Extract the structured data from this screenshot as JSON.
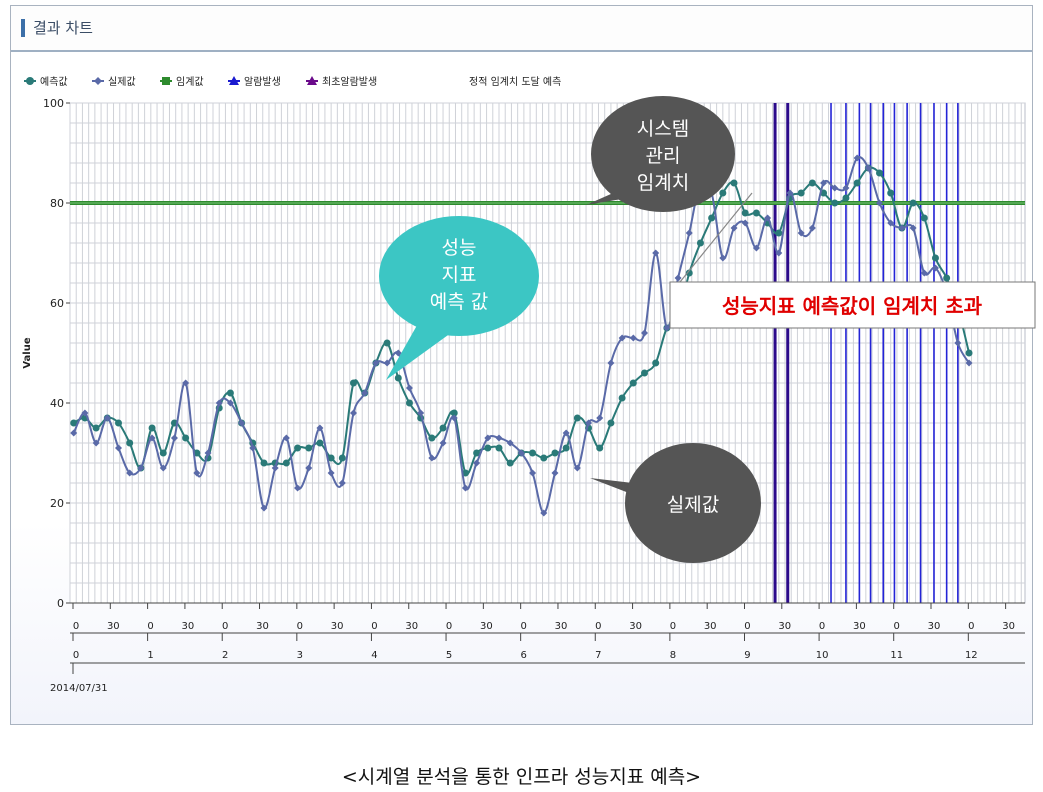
{
  "panel": {
    "title": "결과 차트"
  },
  "caption": "<시계열 분석을 통한 인프라 성능지표 예측>",
  "legend": {
    "items": [
      {
        "label": "예측값",
        "color": "#2a7a78",
        "marker": "circle"
      },
      {
        "label": "실제값",
        "color": "#5a6aa8",
        "marker": "diamond"
      },
      {
        "label": "임계값",
        "color": "#2e8b2e",
        "marker": "square"
      },
      {
        "label": "알람발생",
        "color": "#1a1ad0",
        "marker": "triangle"
      },
      {
        "label": "최초알람발생",
        "color": "#6a0a8a",
        "marker": "triangle"
      }
    ],
    "title": "정적 임계치 도달 예측"
  },
  "callouts": {
    "system_threshold": "시스템\n관리\n임계치",
    "perf_forecast": "성능\n지표\n예측 값",
    "actual": "실제값",
    "exceed_note": "성능지표 예측값이 임계치 초과"
  },
  "chart_data": {
    "type": "line",
    "ylabel": "Value",
    "ylim": [
      0,
      100
    ],
    "yticks": [
      0,
      20,
      40,
      60,
      80,
      100
    ],
    "x_minor_labels": [
      "0",
      "30",
      "0",
      "30",
      "0",
      "30",
      "0",
      "30",
      "0",
      "30",
      "0",
      "30",
      "0",
      "30",
      "0",
      "30",
      "0",
      "30",
      "0",
      "30",
      "0",
      "30",
      "0",
      "30",
      "0",
      "30"
    ],
    "x_hour_labels": [
      "0",
      "1",
      "2",
      "3",
      "4",
      "5",
      "6",
      "7",
      "8",
      "9",
      "10",
      "11",
      "12"
    ],
    "date_label": "2014/07/31",
    "x_unit": "hours",
    "x_range": [
      0,
      12.8
    ],
    "threshold": 80,
    "series": [
      {
        "name": "예측값",
        "color": "#2a7a78",
        "values": [
          36,
          37,
          35,
          37,
          36,
          32,
          27,
          35,
          30,
          36,
          33,
          30,
          29,
          39,
          42,
          36,
          32,
          28,
          28,
          28,
          31,
          31,
          32,
          29,
          29,
          44,
          42,
          48,
          52,
          45,
          40,
          37,
          33,
          35,
          38,
          26,
          30,
          31,
          31,
          28,
          30,
          30,
          29,
          30,
          31,
          37,
          35,
          31,
          36,
          41,
          44,
          46,
          48,
          55,
          57,
          66,
          72,
          77,
          82,
          84,
          78,
          78,
          76,
          74,
          81,
          82,
          84,
          82,
          80,
          81,
          84,
          87,
          86,
          82,
          75,
          80,
          77,
          69,
          65,
          59,
          50
        ],
        "x": [
          0.05,
          0.2,
          0.35,
          0.5,
          0.65,
          0.8,
          0.95,
          1.1,
          1.25,
          1.4,
          1.55,
          1.7,
          1.85,
          2.0,
          2.15,
          2.3,
          2.45,
          2.6,
          2.75,
          2.9,
          3.05,
          3.2,
          3.35,
          3.5,
          3.65,
          3.8,
          3.95,
          4.1,
          4.25,
          4.4,
          4.55,
          4.7,
          4.85,
          5.0,
          5.15,
          5.3,
          5.45,
          5.6,
          5.75,
          5.9,
          6.05,
          6.2,
          6.35,
          6.5,
          6.65,
          6.8,
          6.95,
          7.1,
          7.25,
          7.4,
          7.55,
          7.7,
          7.85,
          8.0,
          8.15,
          8.3,
          8.45,
          8.6,
          8.75,
          8.9,
          9.05,
          9.2,
          9.35,
          9.5,
          9.65,
          9.8,
          9.95,
          10.1,
          10.25,
          10.4,
          10.55,
          10.7,
          10.85,
          11.0,
          11.15,
          11.3,
          11.45,
          11.6,
          11.75,
          11.9,
          12.05
        ]
      },
      {
        "name": "실제값",
        "color": "#5a6aa8",
        "values": [
          34,
          38,
          32,
          37,
          31,
          26,
          27,
          33,
          27,
          33,
          44,
          26,
          30,
          40,
          40,
          36,
          31,
          19,
          27,
          33,
          23,
          27,
          35,
          26,
          24,
          38,
          42,
          48,
          48,
          50,
          43,
          38,
          29,
          32,
          37,
          23,
          28,
          33,
          33,
          32,
          30,
          26,
          18,
          26,
          34,
          27,
          36,
          37,
          48,
          53,
          53,
          54,
          70,
          55,
          65,
          74,
          84,
          82,
          69,
          75,
          76,
          71,
          77,
          70,
          82,
          74,
          75,
          84,
          83,
          83,
          89,
          87,
          80,
          76,
          75,
          75,
          66,
          67,
          62,
          52,
          48
        ],
        "x": [
          0.05,
          0.2,
          0.35,
          0.5,
          0.65,
          0.8,
          0.95,
          1.1,
          1.25,
          1.4,
          1.55,
          1.7,
          1.85,
          2.0,
          2.15,
          2.3,
          2.45,
          2.6,
          2.75,
          2.9,
          3.05,
          3.2,
          3.35,
          3.5,
          3.65,
          3.8,
          3.95,
          4.1,
          4.25,
          4.4,
          4.55,
          4.7,
          4.85,
          5.0,
          5.15,
          5.3,
          5.45,
          5.6,
          5.75,
          5.9,
          6.05,
          6.2,
          6.35,
          6.5,
          6.65,
          6.8,
          6.95,
          7.1,
          7.25,
          7.4,
          7.55,
          7.7,
          7.85,
          8.0,
          8.15,
          8.3,
          8.45,
          8.6,
          8.75,
          8.9,
          9.05,
          9.2,
          9.35,
          9.5,
          9.65,
          9.8,
          9.95,
          10.1,
          10.25,
          10.4,
          10.55,
          10.7,
          10.85,
          11.0,
          11.15,
          11.3,
          11.45,
          11.6,
          11.75,
          11.9,
          12.05
        ]
      }
    ],
    "first_alarm_x": [
      9.45,
      9.62
    ],
    "alarm_x": [
      10.2,
      10.4,
      10.58,
      10.73,
      10.9,
      11.05,
      11.22,
      11.4,
      11.58,
      11.75,
      11.9
    ]
  }
}
